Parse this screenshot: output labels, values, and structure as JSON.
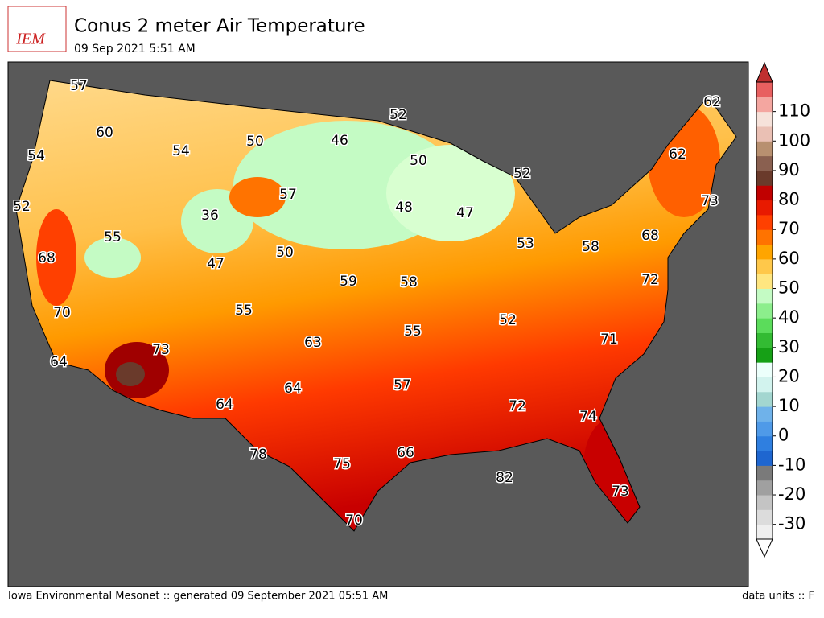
{
  "header": {
    "logo": "IEM",
    "title": "Conus 2 meter Air Temperature",
    "subtitle": "09 Sep 2021 5:51 AM"
  },
  "map": {
    "stations": [
      57,
      52,
      62,
      60,
      54,
      50,
      46,
      50,
      62,
      54,
      52,
      73,
      52,
      57,
      36,
      48,
      47,
      55,
      68,
      53,
      58,
      68,
      47,
      50,
      72,
      59,
      58,
      70,
      55,
      52,
      55,
      71,
      63,
      73,
      64,
      57,
      64,
      64,
      72,
      74,
      78,
      66,
      75,
      82,
      73,
      70
    ]
  },
  "colorbar": {
    "lim": [
      -35,
      120
    ],
    "colors": [
      "#efefef",
      "#dcdcdc",
      "#c4c4c4",
      "#a0a0a0",
      "#7a7a7a",
      "#1e66d0",
      "#2f7fe0",
      "#4f9ae8",
      "#6fb2ea",
      "#a3d6d0",
      "#d2f3ee",
      "#ecfffb",
      "#16a016",
      "#33bb33",
      "#5bdc5b",
      "#8cee8c",
      "#c4fbc4",
      "#ffe680",
      "#ffc84a",
      "#ffa500",
      "#ff7300",
      "#ff4000",
      "#e81a00",
      "#c00000",
      "#6a3a2b",
      "#8a6050",
      "#b89070",
      "#eac0b4",
      "#f6e2da",
      "#f4a6a0",
      "#e86060"
    ],
    "ticks": [
      -30,
      -20,
      -10,
      0,
      10,
      20,
      30,
      40,
      50,
      60,
      70,
      80,
      90,
      100,
      110
    ]
  },
  "footer": {
    "left": "Iowa Environmental Mesonet :: generated 09 September 2021 05:51 AM",
    "right": "data units :: F"
  }
}
